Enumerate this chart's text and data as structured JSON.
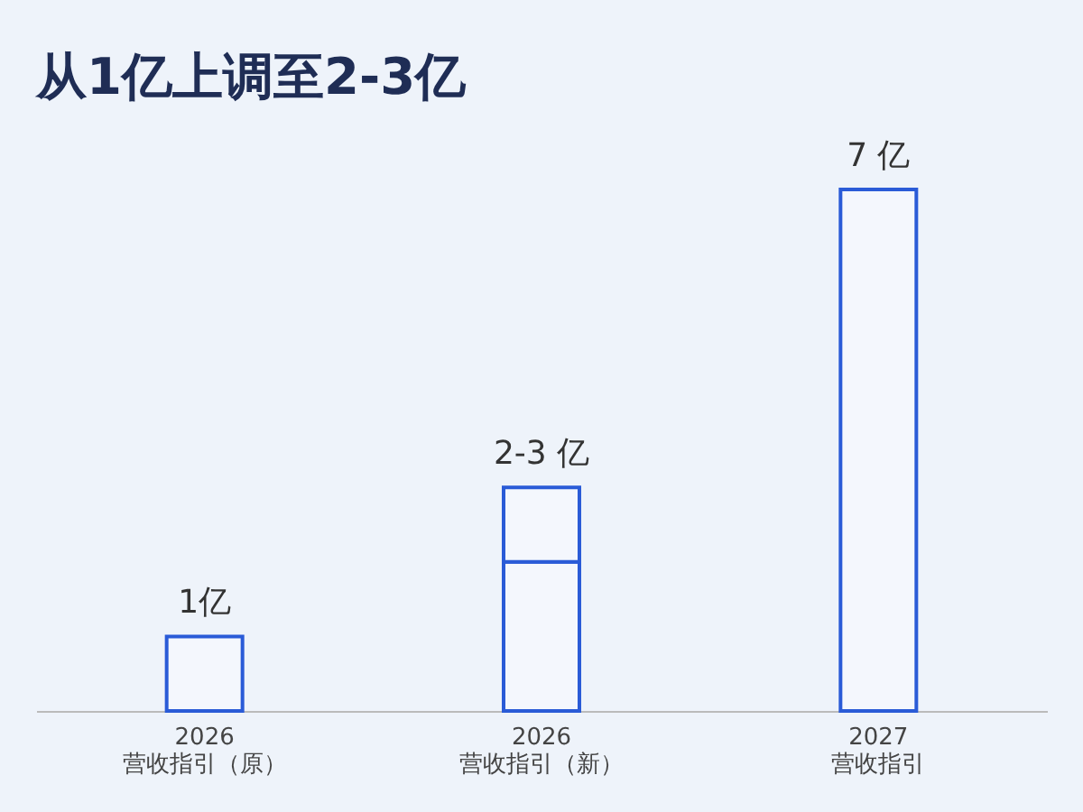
{
  "chart_data": {
    "type": "bar",
    "stacked": true,
    "title": "从1亿上调至2-3亿",
    "categories": [
      "2026\n营收指引（原）",
      "2026\n营收指引（新）",
      "2027\n营收指引"
    ],
    "series": [
      {
        "color": "#2a5bd7",
        "values": [
          1,
          2,
          7
        ],
        "value_labels": [
          "1亿",
          null,
          "7 亿"
        ]
      },
      {
        "color": "#2a5bd7",
        "values": [
          null,
          1,
          null
        ],
        "value_labels": [
          null,
          "2-3 亿",
          null
        ]
      }
    ],
    "grid": false
  }
}
